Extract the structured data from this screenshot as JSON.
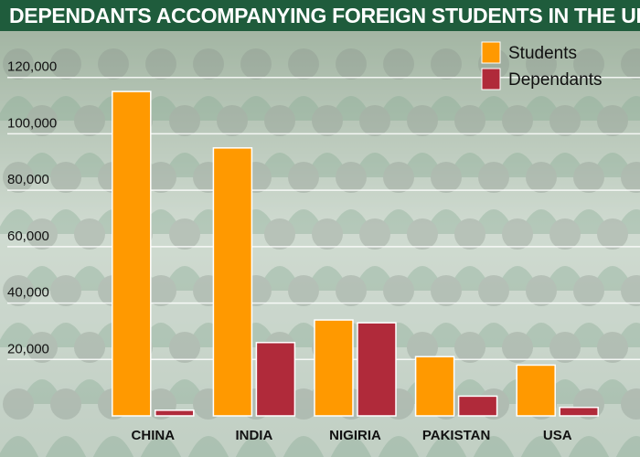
{
  "chart_data": {
    "type": "bar",
    "title": "DEPENDANTS ACCOMPANYING FOREIGN STUDENTS IN THE UK",
    "categories": [
      "CHINA",
      "INDIA",
      "NIGIRIA",
      "PAKISTAN",
      "USA"
    ],
    "series": [
      {
        "name": "Students",
        "color": "#ff9900",
        "values": [
          115000,
          95000,
          34000,
          21000,
          18000
        ]
      },
      {
        "name": "Dependants",
        "color": "#b02a3a",
        "values": [
          2000,
          26000,
          33000,
          7000,
          3000
        ]
      }
    ],
    "yticks": [
      20000,
      40000,
      60000,
      80000,
      100000,
      120000
    ],
    "ytick_labels": [
      "20,000",
      "40,000",
      "60,000",
      "80,000",
      "100,000",
      "120,000"
    ],
    "ylim": [
      0,
      128000
    ],
    "xlabel": "",
    "ylabel": "",
    "grid": true,
    "legend_position": "top-right"
  }
}
